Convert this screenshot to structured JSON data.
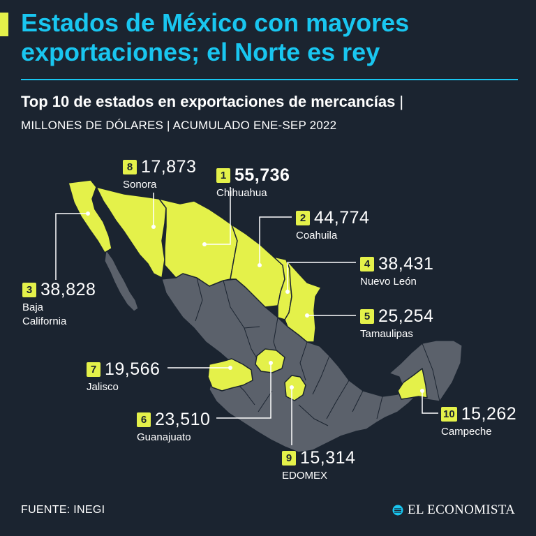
{
  "header": {
    "title": "Estados de México con mayores exportaciones; el Norte es rey",
    "subtitle": "Top 10 de estados en exportaciones de mercancías",
    "subtitle_separator": "|",
    "subtitle2": "MILLONES DE DÓLARES | ACUMULADO ENE-SEP 2022"
  },
  "colors": {
    "highlight": "#e4f14a",
    "state_fill": "#5b616b",
    "background": "#1b2430",
    "title": "#19c6f0"
  },
  "states": [
    {
      "rank": "1",
      "value": "55,736",
      "name": "Chihuahua"
    },
    {
      "rank": "2",
      "value": "44,774",
      "name": "Coahuila"
    },
    {
      "rank": "3",
      "value": "38,828",
      "name": "Baja California"
    },
    {
      "rank": "4",
      "value": "38,431",
      "name": "Nuevo León"
    },
    {
      "rank": "5",
      "value": "25,254",
      "name": "Tamaulipas"
    },
    {
      "rank": "6",
      "value": "23,510",
      "name": "Guanajuato"
    },
    {
      "rank": "7",
      "value": "19,566",
      "name": "Jalisco"
    },
    {
      "rank": "8",
      "value": "17,873",
      "name": "Sonora"
    },
    {
      "rank": "9",
      "value": "15,314",
      "name": "EDOMEX"
    },
    {
      "rank": "10",
      "value": "15,262",
      "name": "Campeche"
    }
  ],
  "baja_california_name_lines": [
    "Baja",
    "California"
  ],
  "footer": {
    "source": "FUENTE: INEGI",
    "brand": "EL ECONOMISTA",
    "brand_icon": "el-economista-logo-icon"
  }
}
